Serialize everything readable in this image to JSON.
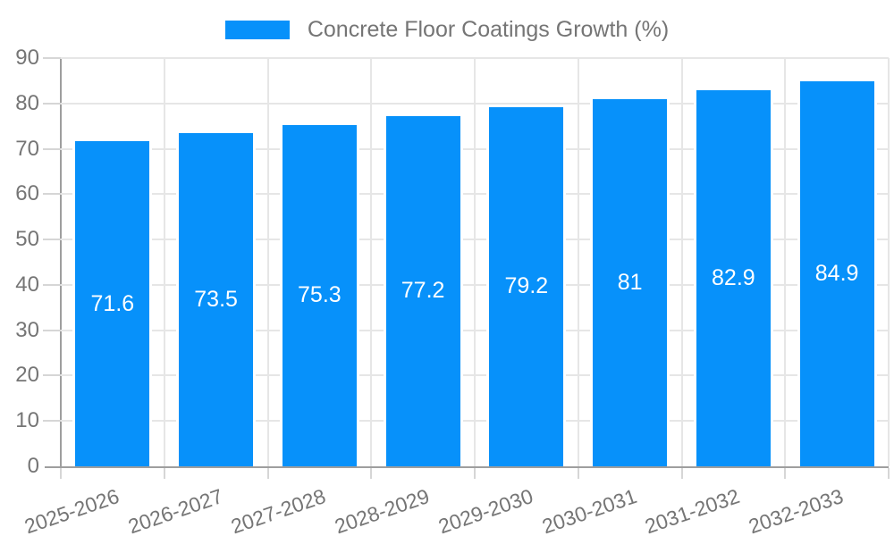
{
  "legend": {
    "label": "Concrete Floor Coatings Growth (%)"
  },
  "chart_data": {
    "type": "bar",
    "title": "Concrete Floor Coatings Growth (%)",
    "categories": [
      "2025-2026",
      "2026-2027",
      "2027-2028",
      "2028-2029",
      "2029-2030",
      "2030-2031",
      "2031-2032",
      "2032-2033"
    ],
    "values": [
      71.6,
      73.5,
      75.3,
      77.2,
      79.2,
      81,
      82.9,
      84.9
    ],
    "value_labels": [
      "71.6",
      "73.5",
      "75.3",
      "77.2",
      "79.2",
      "81",
      "82.9",
      "84.9"
    ],
    "xlabel": "",
    "ylabel": "",
    "ylim": [
      0,
      90
    ],
    "yticks": [
      0,
      10,
      20,
      30,
      40,
      50,
      60,
      70,
      80,
      90
    ],
    "grid": true,
    "legend_position": "top-center",
    "value_label_position": "inside-center",
    "x_label_rotation_deg": -19
  },
  "colors": {
    "bar": "#0791fa",
    "axis_line": "#9e9e9e",
    "gridline": "#e6e6e6",
    "tick": "#d6d6d6",
    "axis_label_text": "#757575",
    "value_label_text": "#ffffff",
    "background": "#ffffff"
  }
}
